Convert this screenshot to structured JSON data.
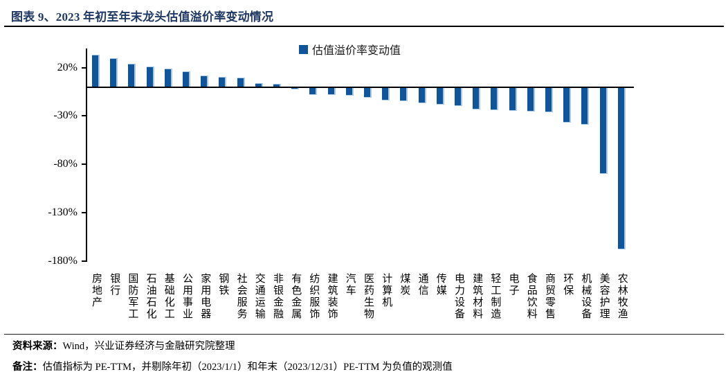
{
  "page": {
    "title": "图表 9、2023 年初至年末龙头估值溢价率变动情况",
    "source_label": "资料来源：",
    "source_text": "Wind，兴业证券经济与金融研究院整理",
    "note_label": "备注：",
    "note_text": "估值指标为 PE-TTM，并剔除年初（2023/1/1）和年末（2023/12/31）PE-TTM 为负值的观测值"
  },
  "colors": {
    "bar": "#10559A",
    "bar_edge_highlight": "#A6C9E8",
    "title_text": "#1F3864",
    "axis": "#000000"
  },
  "chart_data": {
    "type": "bar",
    "title": "2023 年初至年末龙头估值溢价率变动情况",
    "legend_label": "估值溢价率变动值",
    "legend_position": "top-center",
    "grid": false,
    "ylim": [
      -180,
      40
    ],
    "yticks": [
      20,
      -30,
      -80,
      -130,
      -180
    ],
    "ytick_labels": [
      "20%",
      "-30%",
      "-80%",
      "-130%",
      "-180%"
    ],
    "categories": [
      "房地产",
      "银行",
      "国防军工",
      "石油石化",
      "基础化工",
      "公用事业",
      "家用电器",
      "钢铁",
      "社会服务",
      "交通运输",
      "非银金融",
      "有色金属",
      "纺织服饰",
      "建筑装饰",
      "汽车",
      "医药生物",
      "计算机",
      "煤炭",
      "通信",
      "传媒",
      "电力设备",
      "建筑材料",
      "轻工制造",
      "电子",
      "食品饮料",
      "商贸零售",
      "环保",
      "机械设备",
      "美容护理",
      "农林牧渔"
    ],
    "values": [
      33,
      30,
      24,
      21,
      19,
      16,
      12,
      10.5,
      10,
      4,
      3,
      -2.5,
      -8,
      -8.5,
      -9,
      -11,
      -14,
      -15,
      -17,
      -18,
      -20,
      -23,
      -24,
      -24.5,
      -25.5,
      -26.5,
      -37,
      -39,
      -90,
      -168
    ],
    "unit": "%"
  }
}
